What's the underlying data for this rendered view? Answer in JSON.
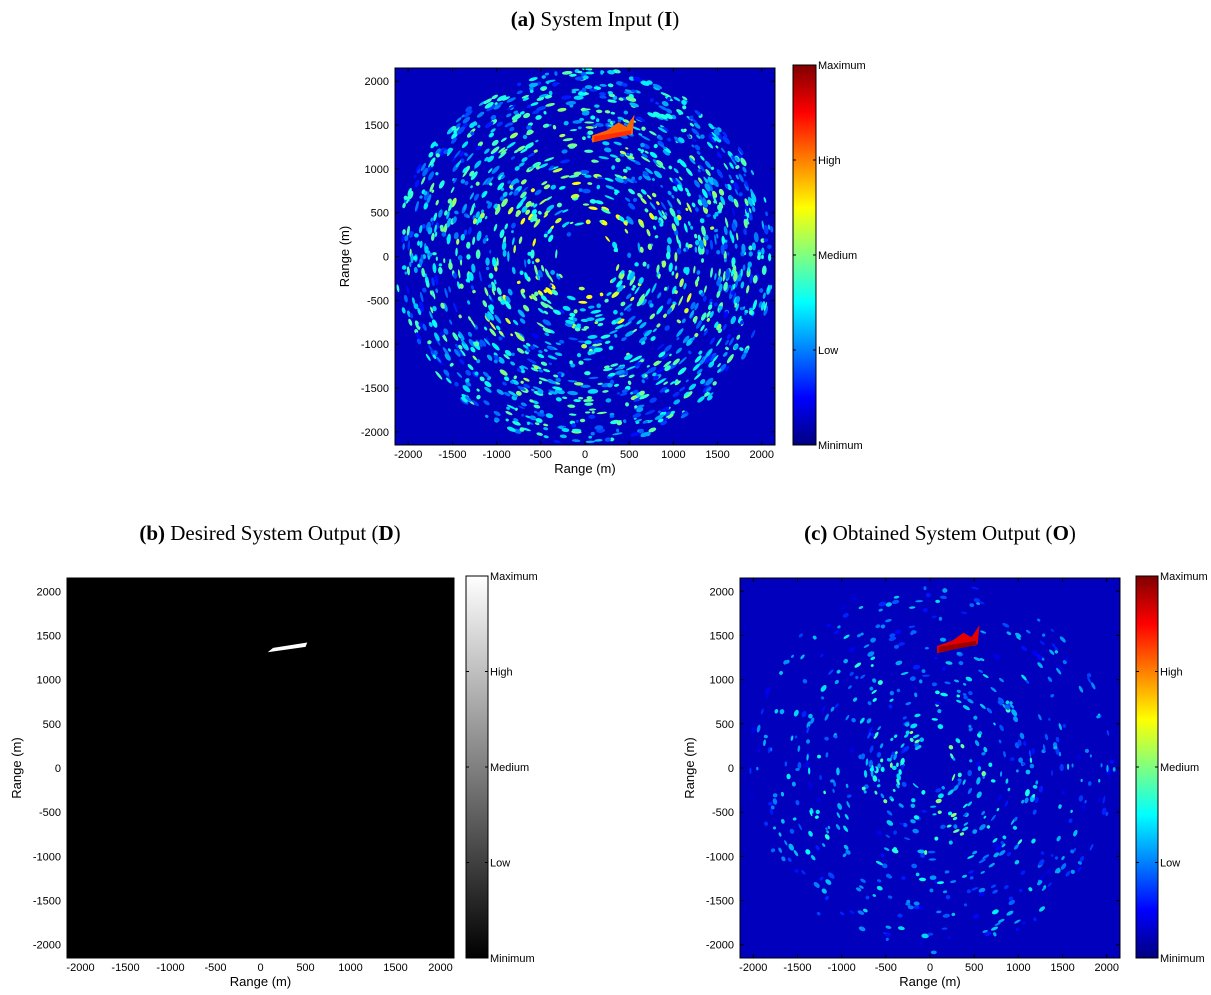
{
  "chart_data": [
    {
      "type": "image",
      "colormap": "jet",
      "title_parts": [
        {
          "text": "(a)",
          "bold": true
        },
        {
          "text": " System Input ("
        },
        {
          "text": "I",
          "bold": true
        },
        {
          "text": ")"
        }
      ],
      "xlabel": "Range (m)",
      "ylabel": "Range (m)",
      "xlim": [
        -2150,
        2150
      ],
      "ylim": [
        -2150,
        2150
      ],
      "xticks": [
        -2000,
        -1500,
        -1000,
        -500,
        0,
        500,
        1000,
        1500,
        2000
      ],
      "yticks": [
        -2000,
        -1500,
        -1000,
        -500,
        0,
        500,
        1000,
        1500,
        2000
      ],
      "clim": [
        0,
        1
      ],
      "cticks": [
        {
          "value": 0,
          "label": "Minimum"
        },
        {
          "value": 0.25,
          "label": "Low"
        },
        {
          "value": 0.5,
          "label": "Medium"
        },
        {
          "value": 0.75,
          "label": "High"
        },
        {
          "value": 1,
          "label": "Maximum"
        }
      ]
    },
    {
      "type": "image",
      "colormap": "gray",
      "title_parts": [
        {
          "text": "(b)",
          "bold": true
        },
        {
          "text": " Desired System Output ("
        },
        {
          "text": "D",
          "bold": true
        },
        {
          "text": ")"
        }
      ],
      "xlabel": "Range (m)",
      "ylabel": "Range (m)",
      "xlim": [
        -2150,
        2150
      ],
      "ylim": [
        -2150,
        2150
      ],
      "xticks": [
        -2000,
        -1500,
        -1000,
        -500,
        0,
        500,
        1000,
        1500,
        2000
      ],
      "yticks": [
        -2000,
        -1500,
        -1000,
        -500,
        0,
        500,
        1000,
        1500,
        2000
      ],
      "clim": [
        0,
        1
      ],
      "cticks": [
        {
          "value": 0,
          "label": "Minimum"
        },
        {
          "value": 0.25,
          "label": "Low"
        },
        {
          "value": 0.5,
          "label": "Medium"
        },
        {
          "value": 0.75,
          "label": "High"
        },
        {
          "value": 1,
          "label": "Maximum"
        }
      ]
    },
    {
      "type": "image",
      "colormap": "jet",
      "title_parts": [
        {
          "text": "(c)",
          "bold": true
        },
        {
          "text": " Obtained System Output ("
        },
        {
          "text": "O",
          "bold": true
        },
        {
          "text": ")"
        }
      ],
      "xlabel": "Range (m)",
      "ylabel": "Range (m)",
      "xlim": [
        -2150,
        2150
      ],
      "ylim": [
        -2150,
        2150
      ],
      "xticks": [
        -2000,
        -1500,
        -1000,
        -500,
        0,
        500,
        1000,
        1500,
        2000
      ],
      "yticks": [
        -2000,
        -1500,
        -1000,
        -500,
        0,
        500,
        1000,
        1500,
        2000
      ],
      "clim": [
        0,
        1
      ],
      "cticks": [
        {
          "value": 0,
          "label": "Minimum"
        },
        {
          "value": 0.25,
          "label": "Low"
        },
        {
          "value": 0.5,
          "label": "Medium"
        },
        {
          "value": 0.75,
          "label": "High"
        },
        {
          "value": 1,
          "label": "Maximum"
        }
      ]
    }
  ]
}
